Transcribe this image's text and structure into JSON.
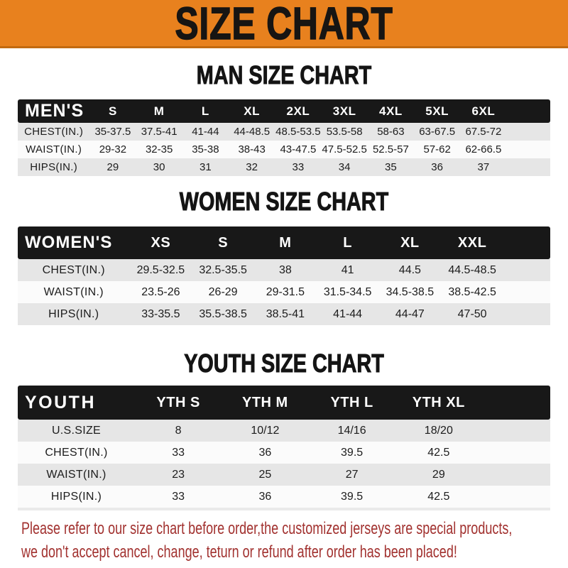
{
  "banner": {
    "title": "SIZE CHART"
  },
  "sections": [
    {
      "title": "MAN SIZE CHART",
      "header_label": "MEN'S",
      "columns": [
        "S",
        "M",
        "L",
        "XL",
        "2XL",
        "3XL",
        "4XL",
        "5XL",
        "6XL"
      ],
      "rows": [
        {
          "label": "CHEST(IN.)",
          "values": [
            "35-37.5",
            "37.5-41",
            "41-44",
            "44-48.5",
            "48.5-53.5",
            "53.5-58",
            "58-63",
            "63-67.5",
            "67.5-72"
          ]
        },
        {
          "label": "WAIST(IN.)",
          "values": [
            "29-32",
            "32-35",
            "35-38",
            "38-43",
            "43-47.5",
            "47.5-52.5",
            "52.5-57",
            "57-62",
            "62-66.5"
          ]
        },
        {
          "label": "HIPS(IN.)",
          "values": [
            "29",
            "30",
            "31",
            "32",
            "33",
            "34",
            "35",
            "36",
            "37"
          ]
        }
      ]
    },
    {
      "title": "WOMEN SIZE CHART",
      "header_label": "WOMEN'S",
      "columns": [
        "XS",
        "S",
        "M",
        "L",
        "XL",
        "XXL"
      ],
      "rows": [
        {
          "label": "CHEST(IN.)",
          "values": [
            "29.5-32.5",
            "32.5-35.5",
            "38",
            "41",
            "44.5",
            "44.5-48.5"
          ]
        },
        {
          "label": "WAIST(IN.)",
          "values": [
            "23.5-26",
            "26-29",
            "29-31.5",
            "31.5-34.5",
            "34.5-38.5",
            "38.5-42.5"
          ]
        },
        {
          "label": "HIPS(IN.)",
          "values": [
            "33-35.5",
            "35.5-38.5",
            "38.5-41",
            "41-44",
            "44-47",
            "47-50"
          ]
        }
      ]
    },
    {
      "title": "YOUTH SIZE CHART",
      "header_label": "YOUTH",
      "columns": [
        "YTH S",
        "YTH M",
        "YTH L",
        "YTH XL"
      ],
      "rows": [
        {
          "label": "U.S.SIZE",
          "values": [
            "8",
            "10/12",
            "14/16",
            "18/20"
          ]
        },
        {
          "label": "CHEST(IN.)",
          "values": [
            "33",
            "36",
            "39.5",
            "42.5"
          ]
        },
        {
          "label": "WAIST(IN.)",
          "values": [
            "23",
            "25",
            "27",
            "29"
          ]
        },
        {
          "label": "HIPS(IN.)",
          "values": [
            "33",
            "36",
            "39.5",
            "42.5"
          ]
        }
      ]
    }
  ],
  "footer": {
    "line1": "Please refer to our size chart before order,the customized jerseys are special products,",
    "line2": "we don't accept cancel, change, teturn or refund after order has been placed!"
  },
  "colors": {
    "banner_orange": "#E8811E",
    "bar_black": "#181818",
    "row_gray": "#E6E6E6",
    "row_white": "#FBFBFB",
    "footer_red": "#A23230"
  }
}
